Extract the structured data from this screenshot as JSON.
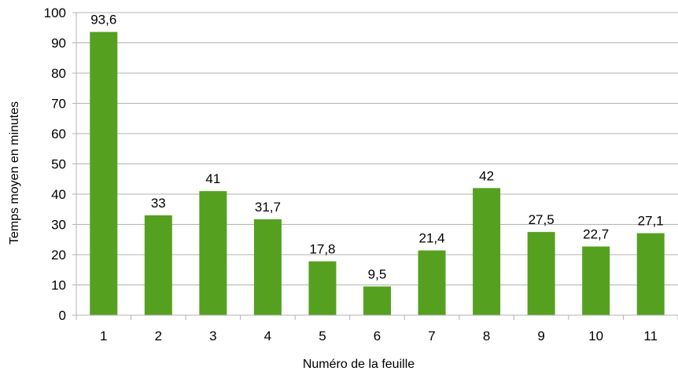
{
  "chart_data": {
    "type": "bar",
    "title": "",
    "xlabel": "Numéro de la feuille",
    "ylabel": "Temps moyen en minutes",
    "categories": [
      "1",
      "2",
      "3",
      "4",
      "5",
      "6",
      "7",
      "8",
      "9",
      "10",
      "11"
    ],
    "values": [
      93.6,
      33,
      41,
      31.7,
      17.8,
      9.5,
      21.4,
      42,
      27.5,
      22.7,
      27.1
    ],
    "data_labels": [
      "93,6",
      "33",
      "41",
      "31,7",
      "17,8",
      "9,5",
      "21,4",
      "42",
      "27,5",
      "22,7",
      "27,1"
    ],
    "yticks": [
      "0",
      "10",
      "20",
      "30",
      "40",
      "50",
      "60",
      "70",
      "80",
      "90",
      "100"
    ],
    "ylim": [
      0,
      100
    ],
    "grid": true,
    "legend": "none",
    "bar_color": "#56a020",
    "grid_color": "#b3b3b3"
  }
}
